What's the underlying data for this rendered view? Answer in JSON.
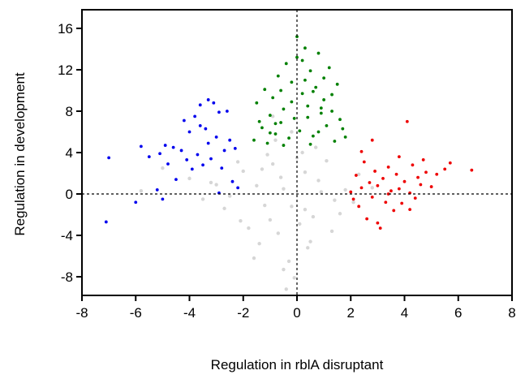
{
  "chart_data": {
    "type": "scatter",
    "xlabel": "Regulation in rblA disruptant",
    "ylabel": "Regulation in development",
    "xlim": [
      -8,
      8
    ],
    "ylim": [
      -9.8,
      17.8
    ],
    "xticks": [
      -8,
      -6,
      -4,
      -2,
      0,
      2,
      4,
      6,
      8
    ],
    "yticks": [
      -8,
      -4,
      0,
      4,
      8,
      12,
      16
    ],
    "reference_lines": {
      "x": 0,
      "y": 0
    },
    "series": [
      {
        "color": "#d6d6d6",
        "x": [
          -0.5,
          -0.2,
          0.3,
          -1,
          0.8,
          -1.5,
          1.4,
          -0.7,
          0,
          0.5,
          -2,
          -1.2,
          1.8,
          -0.3,
          0.2,
          -2.5,
          2.3,
          -0.9,
          0.6,
          -1.8,
          -3,
          1.1,
          -0.1,
          -0.6,
          0.4,
          -4,
          -1.4,
          1.6,
          -2.2,
          0.9,
          -0.4,
          -3.5,
          2.8,
          -0.8,
          0.1,
          -1.1,
          -5,
          1.3,
          -2.7,
          0.7,
          -1.6,
          -0.2,
          -5.8,
          2.1,
          -0.5,
          -3.2,
          -1.3,
          0.3,
          -0.9,
          -2.1
        ],
        "values": [
          0.5,
          -1.2,
          2.1,
          -2.5,
          1.3,
          0.8,
          -0.6,
          -3.8,
          3.5,
          -4.6,
          2.2,
          -1.1,
          0.4,
          -6.5,
          4,
          -0.2,
          1.9,
          2.9,
          -2.2,
          -3.3,
          0.9,
          3.2,
          -8.1,
          1.6,
          -5.2,
          1.5,
          -4.8,
          -1.9,
          3.1,
          0.2,
          -9.2,
          -0.5,
          0.6,
          5.2,
          -2.9,
          3.8,
          2.5,
          -3.6,
          -1.4,
          4.5,
          -6.2,
          6,
          0.3,
          -0.8,
          -7.3,
          1.1,
          2.4,
          -1.5,
          7.5,
          -2.6
        ]
      },
      {
        "color": "#0000ee",
        "x": [
          -7.1,
          -7,
          -6,
          -5.8,
          -5.5,
          -5.2,
          -5,
          -4.9,
          -4.8,
          -4.6,
          -4.5,
          -4.3,
          -4.2,
          -4,
          -3.9,
          -3.8,
          -3.7,
          -3.6,
          -3.5,
          -3.4,
          -3.3,
          -3.2,
          -3.1,
          -3,
          -2.9,
          -2.8,
          -2.7,
          -2.6,
          -2.5,
          -2.4,
          -2.3,
          -3.6,
          -4.1,
          -2.9,
          -3.3,
          -5.1,
          -2.2
        ],
        "values": [
          -2.7,
          3.5,
          -0.8,
          4.6,
          3.6,
          0.4,
          -0.5,
          4.7,
          2.9,
          4.5,
          1.4,
          4.2,
          7.1,
          6,
          2.4,
          7.5,
          3.8,
          8.6,
          2.8,
          6.3,
          9.1,
          3.4,
          8.8,
          5.5,
          7.9,
          2.5,
          4.2,
          8,
          5.2,
          1.2,
          4.4,
          6.6,
          3.3,
          0.1,
          4.9,
          3.9,
          0.6
        ]
      },
      {
        "color": "#008000",
        "x": [
          -1.6,
          -1.5,
          -1.3,
          -1.2,
          -1.1,
          -1,
          -0.9,
          -0.8,
          -0.7,
          -0.6,
          -0.5,
          -0.4,
          -0.3,
          -0.2,
          -0.1,
          0,
          0.1,
          0.2,
          0.3,
          0.4,
          0.5,
          0.6,
          0.7,
          0.8,
          0.9,
          1,
          1.1,
          1.2,
          1.3,
          1.4,
          1.5,
          1.6,
          1.7,
          1.8,
          -0.5,
          0,
          0.3,
          0.6,
          -0.8,
          -1.4,
          0.5,
          1.0,
          -0.2,
          0.8,
          0.2,
          -1.0,
          1.3,
          0.4,
          -0.6,
          0.9
        ],
        "values": [
          5.2,
          8.8,
          6.4,
          10.1,
          4.9,
          7.6,
          9.3,
          5.8,
          11.4,
          6.9,
          8.2,
          12.6,
          5.4,
          10.8,
          7.3,
          13.2,
          6.1,
          9.7,
          14.1,
          8.5,
          11.9,
          5.6,
          10.3,
          13.6,
          7.8,
          9.1,
          6.6,
          12.2,
          8,
          5.1,
          10.6,
          7.2,
          6.3,
          5.5,
          4.7,
          15.2,
          11,
          9.9,
          6.8,
          7,
          4.8,
          11.2,
          8.9,
          6,
          12.9,
          5.9,
          9.6,
          7.4,
          10,
          8.3
        ]
      },
      {
        "color": "#ee0000",
        "x": [
          2,
          2.1,
          2.2,
          2.3,
          2.4,
          2.5,
          2.6,
          2.7,
          2.8,
          2.9,
          3,
          3.1,
          3.2,
          3.3,
          3.4,
          3.5,
          3.6,
          3.7,
          3.8,
          3.9,
          4,
          4.1,
          4.2,
          4.3,
          4.4,
          4.5,
          4.6,
          4.7,
          4.8,
          5,
          5.2,
          5.5,
          5.7,
          6.5,
          2.4,
          3.0,
          3.4,
          2.8,
          4.2,
          3.8
        ],
        "values": [
          0.2,
          -0.5,
          1.8,
          -1.2,
          0.6,
          3.1,
          -2.4,
          1.1,
          -0.3,
          2.2,
          0.8,
          -3.3,
          1.5,
          -0.8,
          2.6,
          0.3,
          -1.6,
          1.9,
          0.5,
          -0.9,
          1.2,
          7,
          0.1,
          2.8,
          -0.4,
          1.6,
          0.9,
          3.3,
          2.1,
          0.7,
          1.9,
          2.4,
          3,
          2.3,
          4.1,
          -2.8,
          0,
          5.2,
          -1.5,
          3.6
        ]
      }
    ]
  }
}
